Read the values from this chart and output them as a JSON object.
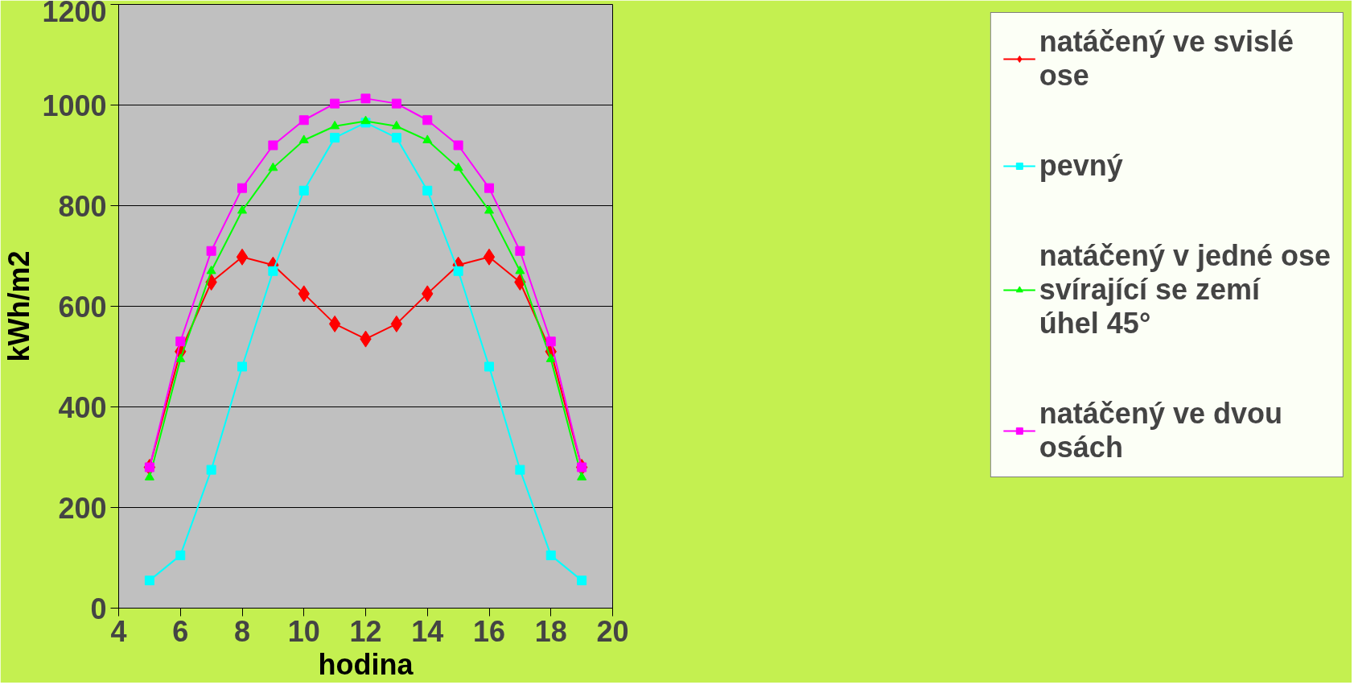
{
  "chart_data": {
    "type": "line",
    "xlabel": "hodina",
    "ylabel": "kWh/m2",
    "x": [
      5,
      6,
      7,
      8,
      9,
      10,
      11,
      12,
      13,
      14,
      15,
      16,
      17,
      18,
      19
    ],
    "xlim": [
      4,
      20
    ],
    "xticks": [
      4,
      6,
      8,
      10,
      12,
      14,
      16,
      18,
      20
    ],
    "ylim": [
      0,
      1200
    ],
    "yticks": [
      0,
      200,
      400,
      600,
      800,
      1000,
      1200
    ],
    "grid": "y",
    "legend": "right",
    "series": [
      {
        "name": "natáčený ve svislé ose",
        "color": "#ff0000",
        "marker": "diamond",
        "values": [
          280,
          510,
          648,
          698,
          682,
          625,
          565,
          535,
          565,
          625,
          682,
          698,
          648,
          510,
          280
        ]
      },
      {
        "name": "pevný",
        "color": "#00ffff",
        "marker": "square",
        "values": [
          55,
          105,
          275,
          480,
          670,
          830,
          935,
          965,
          935,
          830,
          670,
          480,
          275,
          105,
          55
        ]
      },
      {
        "name": "natáčený v jedné ose svírající se zemí úhel 45°",
        "color": "#00ff00",
        "marker": "triangle",
        "values": [
          260,
          495,
          670,
          790,
          875,
          930,
          958,
          968,
          958,
          930,
          875,
          790,
          670,
          495,
          260
        ]
      },
      {
        "name": "natáčený ve dvou osách",
        "color": "#ff00ff",
        "marker": "square",
        "values": [
          280,
          530,
          710,
          835,
          920,
          970,
          1003,
          1013,
          1003,
          970,
          920,
          835,
          710,
          530,
          280
        ]
      }
    ]
  }
}
